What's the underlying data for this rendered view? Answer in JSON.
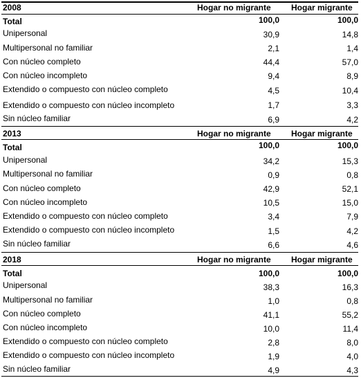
{
  "columns": {
    "col1": "Hogar no migrante",
    "col2": "Hogar migrante"
  },
  "sections": [
    {
      "year": "2008",
      "rows": [
        {
          "label": "Total",
          "v1": "100,0",
          "v2": "100,0"
        },
        {
          "label": "Unipersonal",
          "v1": "30,9",
          "v2": "14,8"
        },
        {
          "label": "Multipersonal no familiar",
          "v1": "2,1",
          "v2": "1,4"
        },
        {
          "label": "Con núcleo completo",
          "v1": "44,4",
          "v2": "57,0"
        },
        {
          "label": "Con núcleo incompleto",
          "v1": "9,4",
          "v2": "8,9"
        },
        {
          "label": "Extendido o compuesto con núcleo completo",
          "v1": "4,5",
          "v2": "10,4"
        },
        {
          "label": "Extendido o compuesto con núcleo incompleto",
          "v1": "1,7",
          "v2": "3,3"
        },
        {
          "label": "Sin núcleo familiar",
          "v1": "6,9",
          "v2": "4,2"
        }
      ]
    },
    {
      "year": "2013",
      "rows": [
        {
          "label": "Total",
          "v1": "100,0",
          "v2": "100,0"
        },
        {
          "label": "Unipersonal",
          "v1": "34,2",
          "v2": "15,3"
        },
        {
          "label": "Multipersonal no familiar",
          "v1": "0,9",
          "v2": "0,8"
        },
        {
          "label": "Con núcleo completo",
          "v1": "42,9",
          "v2": "52,1"
        },
        {
          "label": "Con núcleo incompleto",
          "v1": "10,5",
          "v2": "15,0"
        },
        {
          "label": "Extendido o compuesto con núcleo completo",
          "v1": "3,4",
          "v2": "7,9"
        },
        {
          "label": "Extendido o compuesto con núcleo incompleto",
          "v1": "1,5",
          "v2": "4,2"
        },
        {
          "label": "Sin núcleo familiar",
          "v1": "6,6",
          "v2": "4,6"
        }
      ]
    },
    {
      "year": "2018",
      "rows": [
        {
          "label": "Total",
          "v1": "100,0",
          "v2": "100,0"
        },
        {
          "label": "Unipersonal",
          "v1": "38,3",
          "v2": "16,3"
        },
        {
          "label": "Multipersonal no familiar",
          "v1": "1,0",
          "v2": "0,8"
        },
        {
          "label": "Con núcleo completo",
          "v1": "41,1",
          "v2": "55,2"
        },
        {
          "label": "Con núcleo incompleto",
          "v1": "10,0",
          "v2": "11,4"
        },
        {
          "label": "Extendido o compuesto con núcleo completo",
          "v1": "2,8",
          "v2": "8,0"
        },
        {
          "label": "Extendido o compuesto con núcleo incompleto",
          "v1": "1,9",
          "v2": "4,0"
        },
        {
          "label": "Sin núcleo familiar",
          "v1": "4,9",
          "v2": "4,3"
        }
      ]
    }
  ]
}
